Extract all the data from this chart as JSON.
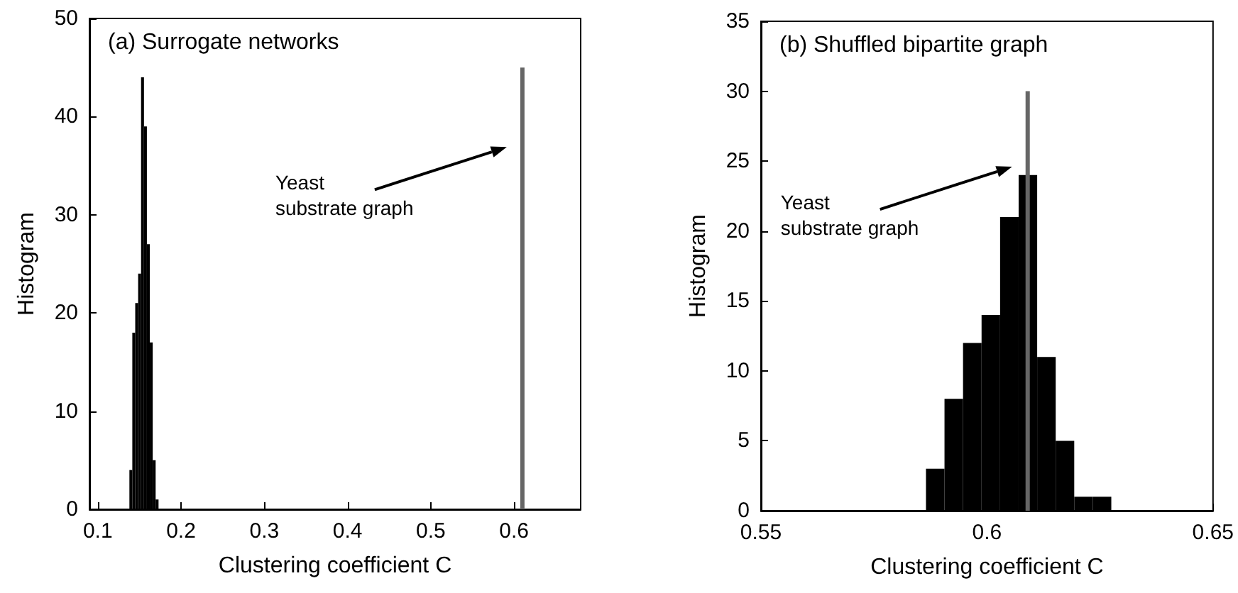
{
  "chart_data": [
    {
      "type": "histogram",
      "title": "(a) Surrogate networks",
      "xlabel": "Clustering coefficient C",
      "ylabel": "Histogram",
      "bins": [
        0.138,
        0.1415,
        0.145,
        0.1485,
        0.152,
        0.1555,
        0.159,
        0.1625,
        0.166,
        0.1695,
        0.173
      ],
      "values": [
        4,
        18,
        21,
        24,
        44,
        39,
        27,
        17,
        5,
        1
      ],
      "color": "#000000",
      "series": [
        {
          "type": "bar",
          "color": "#666666",
          "x": [
            0.61
          ],
          "values": [
            45
          ]
        }
      ],
      "annotations": [
        "Yeast\nsubstrate graph"
      ],
      "xlim": [
        0.09,
        0.68
      ],
      "xticks": [
        0.1,
        0.2,
        0.3,
        0.4,
        0.5,
        0.6
      ],
      "ylim": [
        0,
        50
      ],
      "yticks": [
        0,
        10,
        20,
        30,
        40,
        50
      ]
    },
    {
      "type": "histogram",
      "title": "(b) Shuffled bipartite graph",
      "xlabel": "Clustering coefficient C",
      "ylabel": "Histogram",
      "bins": [
        0.5865,
        0.5906,
        0.5947,
        0.5988,
        0.6029,
        0.607,
        0.6111,
        0.6152,
        0.6193,
        0.6234,
        0.6275
      ],
      "values": [
        3,
        8,
        12,
        14,
        21,
        24,
        11,
        5,
        1,
        1
      ],
      "color": "#000000",
      "series": [
        {
          "type": "bar",
          "color": "#666666",
          "x": [
            0.609
          ],
          "values": [
            30
          ]
        }
      ],
      "annotations": [
        "Yeast\nsubstrate graph"
      ],
      "xlim": [
        0.55,
        0.65
      ],
      "xticks": [
        0.55,
        0.6,
        0.65
      ],
      "ylim": [
        0,
        35
      ],
      "yticks": [
        0,
        5,
        10,
        15,
        20,
        25,
        30,
        35
      ]
    }
  ]
}
